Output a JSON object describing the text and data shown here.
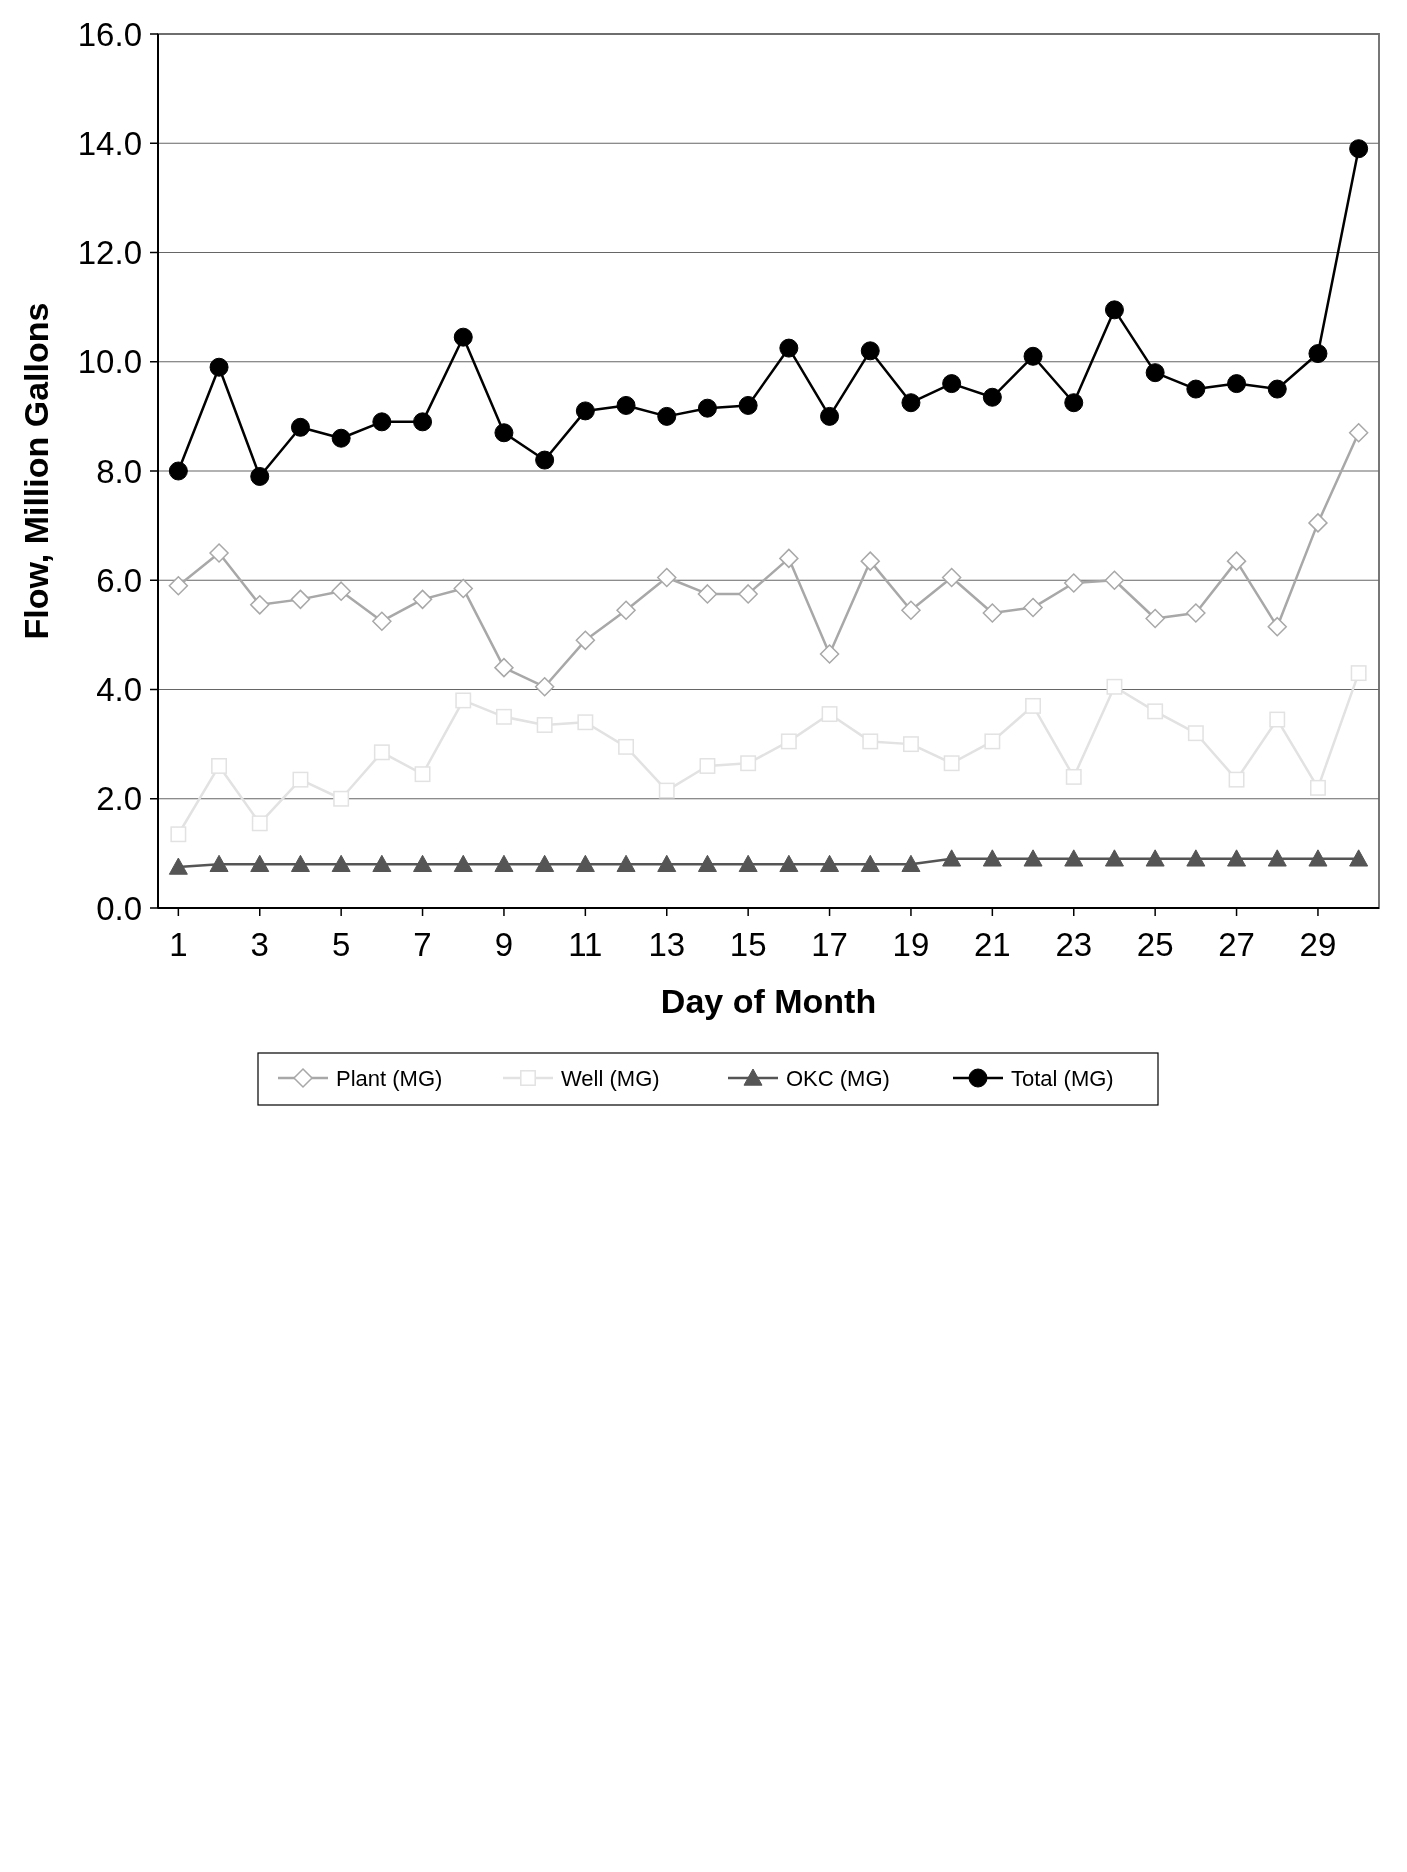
{
  "chart_data": {
    "type": "line",
    "xlabel": "Day of Month",
    "ylabel": "Flow, Million Gallons",
    "x": [
      1,
      2,
      3,
      4,
      5,
      6,
      7,
      8,
      9,
      10,
      11,
      12,
      13,
      14,
      15,
      16,
      17,
      18,
      19,
      20,
      21,
      22,
      23,
      24,
      25,
      26,
      27,
      28,
      29,
      30
    ],
    "xlim": [
      0.5,
      30.5
    ],
    "xticks": [
      1,
      3,
      5,
      7,
      9,
      11,
      13,
      15,
      17,
      19,
      21,
      23,
      25,
      27,
      29
    ],
    "ylim": [
      0,
      16
    ],
    "yticks": [
      {
        "value": 0,
        "label": "0.0"
      },
      {
        "value": 2,
        "label": "2.0"
      },
      {
        "value": 4,
        "label": "4.0"
      },
      {
        "value": 6,
        "label": "6.0"
      },
      {
        "value": 8,
        "label": "8.0"
      },
      {
        "value": 10,
        "label": "10.0"
      },
      {
        "value": 12,
        "label": "12.0"
      },
      {
        "value": 14,
        "label": "14.0"
      },
      {
        "value": 16,
        "label": "16.0"
      }
    ],
    "grid": "y",
    "legend": "bottom",
    "series": [
      {
        "name": "Plant (MG)",
        "color": "#a8a8a8",
        "marker": "diamond",
        "values": [
          5.9,
          6.5,
          5.55,
          5.65,
          5.8,
          5.25,
          5.65,
          5.85,
          4.4,
          4.05,
          4.9,
          5.45,
          6.05,
          5.75,
          5.75,
          6.4,
          4.65,
          6.35,
          5.45,
          6.05,
          5.4,
          5.5,
          5.95,
          6.0,
          5.3,
          5.4,
          6.35,
          5.15,
          7.05,
          8.7
        ]
      },
      {
        "name": "Well (MG)",
        "color": "#e2e2e2",
        "marker": "square",
        "values": [
          1.35,
          2.6,
          1.55,
          2.35,
          2.0,
          2.85,
          2.45,
          3.8,
          3.5,
          3.35,
          3.4,
          2.95,
          2.15,
          2.6,
          2.65,
          3.05,
          3.55,
          3.05,
          3.0,
          2.65,
          3.05,
          3.7,
          2.4,
          4.05,
          3.6,
          3.2,
          2.35,
          3.45,
          2.2,
          4.3
        ]
      },
      {
        "name": "OKC (MG)",
        "color": "#555555",
        "marker": "triangle",
        "values": [
          0.75,
          0.8,
          0.8,
          0.8,
          0.8,
          0.8,
          0.8,
          0.8,
          0.8,
          0.8,
          0.8,
          0.8,
          0.8,
          0.8,
          0.8,
          0.8,
          0.8,
          0.8,
          0.8,
          0.9,
          0.9,
          0.9,
          0.9,
          0.9,
          0.9,
          0.9,
          0.9,
          0.9,
          0.9,
          0.9
        ]
      },
      {
        "name": "Total (MG)",
        "color": "#000000",
        "marker": "circle",
        "values": [
          8.0,
          9.9,
          7.9,
          8.8,
          8.6,
          8.9,
          8.9,
          10.45,
          8.7,
          8.2,
          9.1,
          9.2,
          9.0,
          9.15,
          9.2,
          10.25,
          9.0,
          10.2,
          9.25,
          9.6,
          9.35,
          10.1,
          9.25,
          10.95,
          9.8,
          9.5,
          9.6,
          9.5,
          10.15,
          13.9
        ]
      }
    ]
  }
}
